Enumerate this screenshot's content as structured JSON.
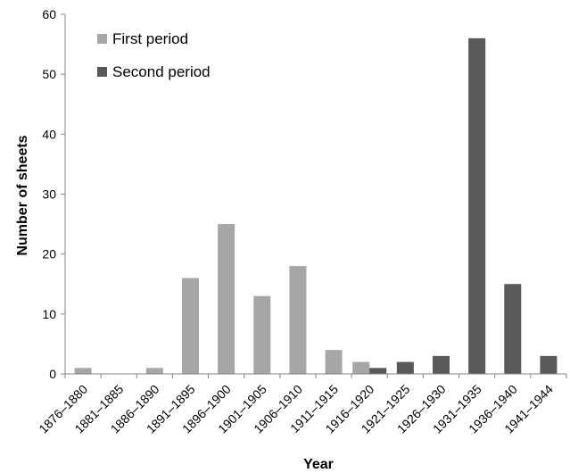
{
  "chart_data": {
    "type": "bar",
    "title": "",
    "xlabel": "Year",
    "ylabel": "Number of sheets",
    "ylim": [
      0,
      60
    ],
    "yticks": [
      0,
      10,
      20,
      30,
      40,
      50,
      60
    ],
    "grid": false,
    "legend_position": "top-left",
    "categories": [
      "1876–1880",
      "1881–1885",
      "1886–1890",
      "1891–1895",
      "1896–1900",
      "1901–1905",
      "1906–1910",
      "1911–1915",
      "1916–1920",
      "1921–1925",
      "1926–1930",
      "1931–1935",
      "1936–1940",
      "1941–1944"
    ],
    "series": [
      {
        "name": "First period",
        "color": "#a6a6a6",
        "values": [
          1,
          0,
          1,
          16,
          25,
          13,
          18,
          4,
          2,
          null,
          null,
          null,
          null,
          null
        ]
      },
      {
        "name": "Second period",
        "color": "#595959",
        "values": [
          null,
          null,
          null,
          null,
          null,
          null,
          null,
          null,
          1,
          2,
          3,
          56,
          15,
          3
        ]
      }
    ]
  }
}
